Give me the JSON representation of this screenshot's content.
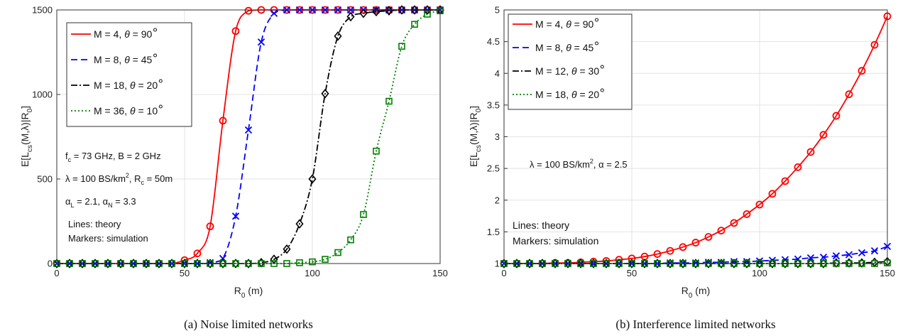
{
  "chart_data": [
    {
      "type": "line",
      "caption": "(a) Noise limited networks",
      "xlabel": "R",
      "xlabel_sub": "0",
      "xlabel_unit": " (m)",
      "ylabel": "E[L",
      "ylabel_sub": "cs",
      "ylabel_rest": "(M,λ)|R",
      "ylabel_sub2": "0",
      "ylabel_end": "]",
      "xlim": [
        0,
        150
      ],
      "ylim": [
        0,
        1500
      ],
      "xticks": [
        0,
        50,
        100,
        150
      ],
      "xtick_labels": [
        "0",
        "50",
        "100",
        "150"
      ],
      "yticks": [
        0,
        500,
        1000,
        1500
      ],
      "ytick_labels": [
        "0",
        "500",
        "1000",
        "1500"
      ],
      "grid": true,
      "legend_position": "top-left",
      "marker_x": [
        0,
        5,
        10,
        15,
        20,
        25,
        30,
        35,
        40,
        45,
        50,
        55,
        60,
        65,
        70,
        75,
        80,
        85,
        90,
        95,
        100,
        105,
        110,
        115,
        120,
        125,
        130,
        135,
        140,
        145,
        150
      ],
      "series": [
        {
          "name": "M = 4, θ = 90°",
          "leg_main": "M = 4, ",
          "leg_theta": "θ",
          "leg_rest": " = 90",
          "color": "#ff0000",
          "dash": "",
          "marker": "circle",
          "x": [
            0,
            5,
            10,
            15,
            20,
            25,
            30,
            35,
            40,
            45,
            50,
            55,
            60,
            65,
            70,
            75,
            80,
            85,
            90,
            95,
            100,
            105,
            110,
            115,
            120,
            125,
            130,
            135,
            140,
            145,
            150
          ],
          "values": [
            0,
            0,
            0,
            0,
            0,
            0,
            0,
            0,
            0,
            0,
            20,
            60,
            220,
            845,
            1375,
            1495,
            1500,
            1500,
            1500,
            1500,
            1500,
            1500,
            1500,
            1500,
            1500,
            1500,
            1500,
            1500,
            1500,
            1500,
            1500
          ]
        },
        {
          "name": "M = 8, θ = 45°",
          "leg_main": "M = 8, ",
          "leg_theta": "θ",
          "leg_rest": " = 45",
          "color": "#0000ff",
          "dash": "9 5",
          "marker": "x",
          "x": [
            0,
            5,
            10,
            15,
            20,
            25,
            30,
            35,
            40,
            45,
            50,
            55,
            60,
            65,
            70,
            75,
            80,
            85,
            90,
            95,
            100,
            105,
            110,
            115,
            120,
            125,
            130,
            135,
            140,
            145,
            150
          ],
          "values": [
            0,
            0,
            0,
            0,
            0,
            0,
            0,
            0,
            0,
            0,
            0,
            0,
            5,
            30,
            280,
            790,
            1310,
            1480,
            1500,
            1500,
            1500,
            1500,
            1500,
            1500,
            1500,
            1500,
            1500,
            1500,
            1500,
            1500,
            1500
          ]
        },
        {
          "name": "M = 18, θ = 20°",
          "leg_main": "M = 18, ",
          "leg_theta": "θ",
          "leg_rest": " = 20",
          "color": "#000000",
          "dash": "9 3 2 3",
          "marker": "diamond",
          "x": [
            0,
            5,
            10,
            15,
            20,
            25,
            30,
            35,
            40,
            45,
            50,
            55,
            60,
            65,
            70,
            75,
            80,
            85,
            90,
            95,
            100,
            105,
            110,
            115,
            120,
            125,
            130,
            135,
            140,
            145,
            150
          ],
          "values": [
            0,
            0,
            0,
            0,
            0,
            0,
            0,
            0,
            0,
            0,
            0,
            0,
            0,
            0,
            0,
            0,
            5,
            25,
            85,
            235,
            500,
            1005,
            1345,
            1460,
            1480,
            1490,
            1495,
            1500,
            1500,
            1500,
            1500
          ]
        },
        {
          "name": "M = 36, θ = 10°",
          "leg_main": "M = 36, ",
          "leg_theta": "θ",
          "leg_rest": " = 10",
          "color": "#008000",
          "dash": "2 3",
          "marker": "square",
          "x": [
            0,
            5,
            10,
            15,
            20,
            25,
            30,
            35,
            40,
            45,
            50,
            55,
            60,
            65,
            70,
            75,
            80,
            85,
            90,
            95,
            100,
            105,
            110,
            115,
            120,
            125,
            130,
            135,
            140,
            145,
            150
          ],
          "values": [
            0,
            0,
            0,
            0,
            0,
            0,
            0,
            0,
            0,
            0,
            0,
            0,
            0,
            0,
            0,
            0,
            0,
            0,
            0,
            5,
            10,
            25,
            65,
            140,
            290,
            665,
            960,
            1285,
            1415,
            1475,
            1495
          ]
        }
      ],
      "annotations": {
        "fc_main": "f",
        "fc_sub": "c",
        "fc_rest": " = 73 GHz, B = 2 GHz",
        "lam_sym": "λ",
        "lam_rest": " = 100 BS/km",
        "lam_sup": "2",
        "lam_rest2": ", R",
        "lam_sub": "c",
        "lam_end": " = 50m",
        "aL_sym": "α",
        "aL_sub": "L",
        "aL_rest": " = 2.1, ",
        "aN_sym": "α",
        "aN_sub": "N",
        "aN_rest": " = 3.3",
        "lines": "Lines: theory",
        "markers": "Markers: simulation"
      }
    },
    {
      "type": "line",
      "caption": "(b) Interference limited networks",
      "xlabel": "R",
      "xlabel_sub": "0",
      "xlabel_unit": " (m)",
      "ylabel": "E[L",
      "ylabel_sub": "cs",
      "ylabel_rest": "(M,λ)|R",
      "ylabel_sub2": "0",
      "ylabel_end": "]",
      "xlim": [
        0,
        150
      ],
      "ylim": [
        1,
        5
      ],
      "xticks": [
        0,
        50,
        100,
        150
      ],
      "xtick_labels": [
        "0",
        "50",
        "100",
        "150"
      ],
      "yticks": [
        1,
        1.5,
        2,
        2.5,
        3,
        3.5,
        4,
        4.5,
        5
      ],
      "ytick_labels": [
        "1",
        "1.5",
        "2",
        "2.5",
        "3",
        "3.5",
        "4",
        "4.5",
        "5"
      ],
      "grid": true,
      "legend_position": "top-left",
      "series": [
        {
          "name": "M = 4, θ = 90°",
          "leg_main": "M = 4, ",
          "leg_theta": "θ",
          "leg_rest": " = 90",
          "color": "#ff0000",
          "dash": "",
          "marker": "circle",
          "x": [
            0,
            5,
            10,
            15,
            20,
            25,
            30,
            35,
            40,
            45,
            50,
            55,
            60,
            65,
            70,
            75,
            80,
            85,
            90,
            95,
            100,
            105,
            110,
            115,
            120,
            125,
            130,
            135,
            140,
            145,
            150
          ],
          "values": [
            1,
            1,
            1,
            1,
            1.01,
            1.01,
            1.02,
            1.03,
            1.04,
            1.06,
            1.08,
            1.11,
            1.15,
            1.2,
            1.26,
            1.33,
            1.42,
            1.52,
            1.64,
            1.78,
            1.93,
            2.1,
            2.3,
            2.52,
            2.76,
            3.03,
            3.33,
            3.67,
            4.04,
            4.45,
            4.9
          ]
        },
        {
          "name": "M = 8, θ = 45°",
          "leg_main": "M = 8, ",
          "leg_theta": "θ",
          "leg_rest": " = 45",
          "color": "#0000ff",
          "dash": "9 5",
          "marker": "x",
          "x": [
            0,
            5,
            10,
            15,
            20,
            25,
            30,
            35,
            40,
            45,
            50,
            55,
            60,
            65,
            70,
            75,
            80,
            85,
            90,
            95,
            100,
            105,
            110,
            115,
            120,
            125,
            130,
            135,
            140,
            145,
            150
          ],
          "values": [
            1,
            1,
            1,
            1,
            1,
            1,
            1,
            1,
            1,
            1,
            1,
            1,
            1,
            1.01,
            1.01,
            1.01,
            1.02,
            1.02,
            1.03,
            1.03,
            1.04,
            1.05,
            1.06,
            1.07,
            1.09,
            1.1,
            1.12,
            1.14,
            1.17,
            1.2,
            1.27
          ]
        },
        {
          "name": "M = 12, θ = 30°",
          "leg_main": "M = 12, ",
          "leg_theta": "θ",
          "leg_rest": " = 30",
          "color": "#000000",
          "dash": "9 3 2 3",
          "marker": "diamond",
          "x": [
            0,
            5,
            10,
            15,
            20,
            25,
            30,
            35,
            40,
            45,
            50,
            55,
            60,
            65,
            70,
            75,
            80,
            85,
            90,
            95,
            100,
            105,
            110,
            115,
            120,
            125,
            130,
            135,
            140,
            145,
            150
          ],
          "values": [
            1,
            1,
            1,
            1,
            1,
            1,
            1,
            1,
            1,
            1,
            1,
            1,
            1,
            1,
            1,
            1,
            1,
            1,
            1,
            1,
            1,
            1,
            1,
            1,
            1,
            1,
            1.01,
            1.01,
            1.01,
            1.02,
            1.03
          ]
        },
        {
          "name": "M = 18, θ = 20°",
          "leg_main": "M = 18, ",
          "leg_theta": "θ",
          "leg_rest": " = 20",
          "color": "#008000",
          "dash": "2 3",
          "marker": "square",
          "x": [
            0,
            5,
            10,
            15,
            20,
            25,
            30,
            35,
            40,
            45,
            50,
            55,
            60,
            65,
            70,
            75,
            80,
            85,
            90,
            95,
            100,
            105,
            110,
            115,
            120,
            125,
            130,
            135,
            140,
            145,
            150
          ],
          "values": [
            1,
            1,
            1,
            1,
            1,
            1,
            1,
            1,
            1,
            1,
            1,
            1,
            1,
            1,
            1,
            1,
            1,
            1,
            1,
            1,
            1,
            1,
            1,
            1,
            1,
            1,
            1,
            1,
            1,
            1,
            1.01
          ]
        }
      ],
      "annotations": {
        "lam_sym": "λ",
        "lam_rest": " = 100 BS/km",
        "lam_sup": "2",
        "alpha_rest": ", α = 2.5",
        "lines": "Lines: theory",
        "markers": "Markers: simulation"
      }
    }
  ]
}
